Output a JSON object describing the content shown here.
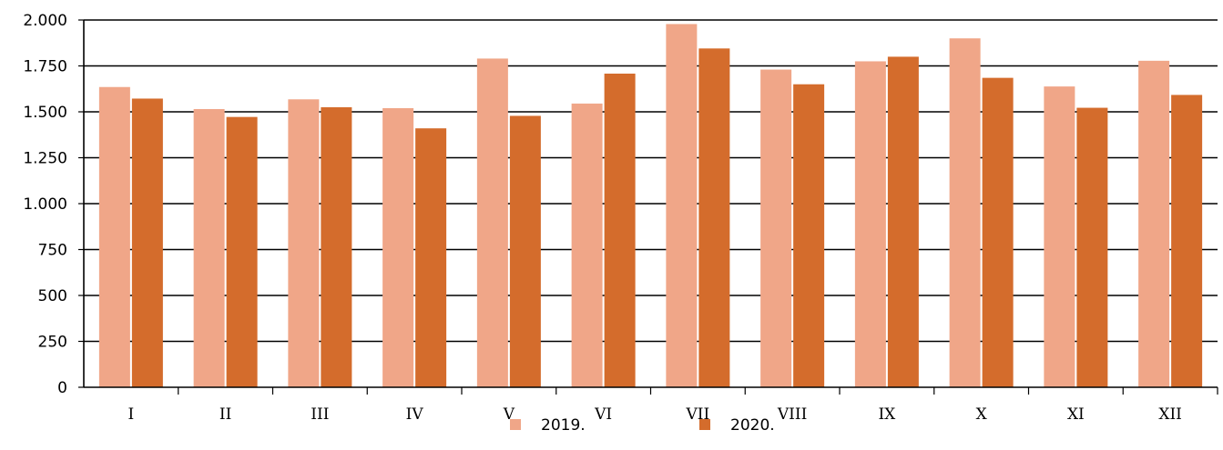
{
  "chart_data": {
    "type": "bar",
    "title": "",
    "xlabel": "",
    "ylabel": "",
    "categories": [
      "I",
      "II",
      "III",
      "IV",
      "V",
      "VI",
      "VII",
      "VIII",
      "IX",
      "X",
      "XI",
      "XII"
    ],
    "series": [
      {
        "name": "2019.",
        "color": "#F0A688",
        "values": [
          1635,
          1515,
          1568,
          1520,
          1790,
          1545,
          1978,
          1730,
          1775,
          1900,
          1638,
          1778
        ]
      },
      {
        "name": "2020.",
        "color": "#D46C2C",
        "values": [
          1572,
          1472,
          1525,
          1410,
          1478,
          1708,
          1845,
          1650,
          1800,
          1685,
          1522,
          1592
        ]
      }
    ],
    "ylim": [
      0,
      2000
    ],
    "yticks": [
      0,
      250,
      500,
      750,
      1000,
      1250,
      1500,
      1750,
      2000
    ],
    "ytick_labels": [
      "0",
      "250",
      "500",
      "750",
      "1.000",
      "1.250",
      "1.500",
      "1.750",
      "2.000"
    ],
    "grid": true,
    "legend": "bottom-center"
  }
}
